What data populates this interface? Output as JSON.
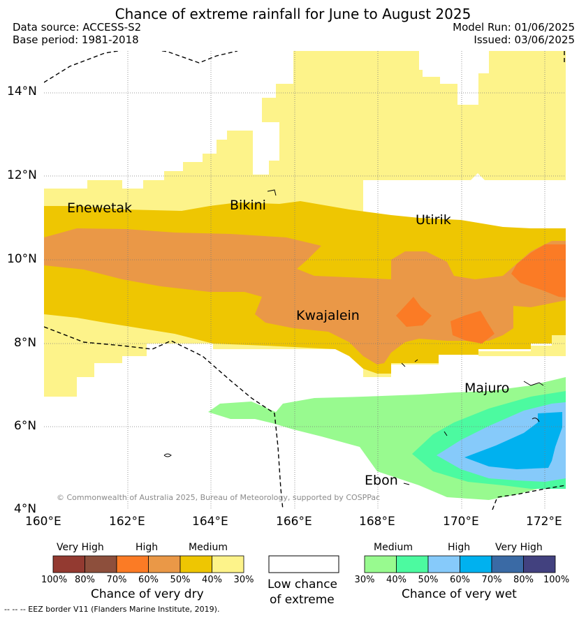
{
  "header": {
    "title": "Chance of extreme rainfall for June to August 2025",
    "data_source": "Data source: ACCESS-S2",
    "base_period": "Base period: 1981-2018",
    "model_run": "Model Run: 01/06/2025",
    "issued": "Issued: 03/06/2025"
  },
  "map": {
    "lat_ticks": [
      "14°N",
      "12°N",
      "10°N",
      "8°N",
      "6°N",
      "4°N"
    ],
    "lon_ticks": [
      "160°E",
      "162°E",
      "164°E",
      "166°E",
      "168°E",
      "170°E",
      "172°E"
    ],
    "places": {
      "enewetak": "Enewetak",
      "bikini": "Bikini",
      "utirik": "Utirik",
      "kwajalein": "Kwajalein",
      "majuro": "Majuro",
      "ebon": "Ebon"
    },
    "copyright": "© Commonwealth of Australia 2025, Bureau of Meteorology, supported by COSPPac"
  },
  "legend": {
    "dry": {
      "levels": [
        "Very High",
        "High",
        "Medium"
      ],
      "colors": [
        "#933a31",
        "#8d4f3c",
        "#fb7b25",
        "#ea9847",
        "#eec602",
        "#fdf38a"
      ],
      "percents": [
        "100%",
        "80%",
        "70%",
        "60%",
        "50%",
        "40%",
        "30%"
      ],
      "caption": "Chance of very dry"
    },
    "low": {
      "caption_line1": "Low chance",
      "caption_line2": "of extreme",
      "color": "#ffffff"
    },
    "wet": {
      "levels": [
        "Medium",
        "High",
        "Very High"
      ],
      "colors": [
        "#98fa8f",
        "#4cfaa0",
        "#86cafa",
        "#00b1ef",
        "#3a6aa5",
        "#42417f"
      ],
      "percents": [
        "30%",
        "40%",
        "50%",
        "60%",
        "70%",
        "80%",
        "100%"
      ],
      "caption": "Chance of very wet"
    }
  },
  "footer": {
    "eez_note": "--  --  -- EEZ border V11 (Flanders Marine Institute, 2019)."
  }
}
